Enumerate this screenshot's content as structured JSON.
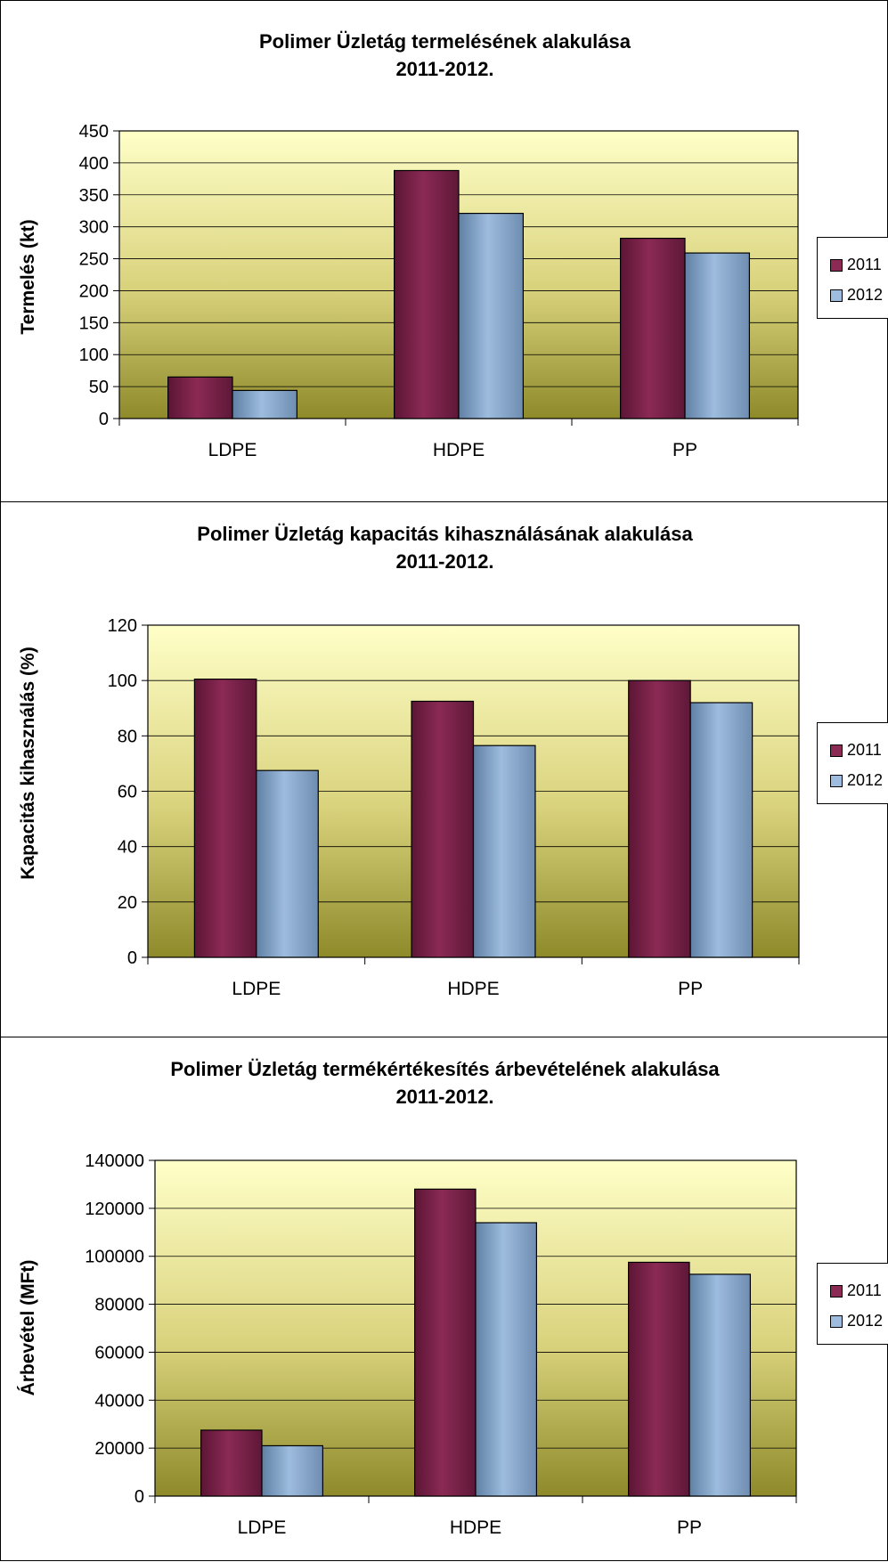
{
  "chart_data": [
    {
      "type": "bar",
      "title": "Polimer Üzletág termelésének alakulása",
      "subtitle": "2011-2012.",
      "xlabel": "",
      "ylabel": "Termelés (kt)",
      "categories": [
        "LDPE",
        "HDPE",
        "PP"
      ],
      "series": [
        {
          "name": "2011",
          "values": [
            65,
            388,
            282
          ]
        },
        {
          "name": "2012",
          "values": [
            44,
            321,
            259
          ]
        }
      ],
      "ylim": [
        0,
        450
      ],
      "yticks": [
        "0",
        "50",
        "100",
        "150",
        "200",
        "250",
        "300",
        "350",
        "400",
        "450"
      ],
      "grid": true,
      "legend": "right"
    },
    {
      "type": "bar",
      "title": "Polimer Üzletág kapacitás kihasználásának alakulása",
      "subtitle": "2011-2012.",
      "xlabel": "",
      "ylabel": "Kapacitás kihasználás (%)",
      "categories": [
        "LDPE",
        "HDPE",
        "PP"
      ],
      "series": [
        {
          "name": "2011",
          "values": [
            100.5,
            92.5,
            100
          ]
        },
        {
          "name": "2012",
          "values": [
            67.5,
            76.5,
            92
          ]
        }
      ],
      "ylim": [
        0,
        120
      ],
      "yticks": [
        "0",
        "20",
        "40",
        "60",
        "80",
        "100",
        "120"
      ],
      "grid": true,
      "legend": "right"
    },
    {
      "type": "bar",
      "title": "Polimer Üzletág termékértékesítés árbevételének alakulása",
      "subtitle": "2011-2012.",
      "xlabel": "",
      "ylabel": "Árbevétel (MFt)",
      "categories": [
        "LDPE",
        "HDPE",
        "PP"
      ],
      "series": [
        {
          "name": "2011",
          "values": [
            27500,
            128000,
            97500
          ]
        },
        {
          "name": "2012",
          "values": [
            21000,
            114000,
            92500
          ]
        }
      ],
      "ylim": [
        0,
        140000
      ],
      "yticks": [
        "0",
        "20000",
        "40000",
        "60000",
        "80000",
        "100000",
        "120000",
        "140000"
      ],
      "grid": true,
      "legend": "right"
    }
  ],
  "colors": {
    "series_2011": "#8B2A55",
    "series_2012": "#9DBCDE",
    "plot_bg_top": "#FFFFC8",
    "plot_bg_bottom": "#8E8A2A"
  }
}
